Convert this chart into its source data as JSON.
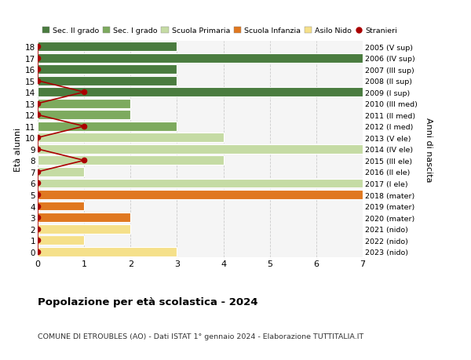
{
  "ages": [
    18,
    17,
    16,
    15,
    14,
    13,
    12,
    11,
    10,
    9,
    8,
    7,
    6,
    5,
    4,
    3,
    2,
    1,
    0
  ],
  "years": [
    "2005 (V sup)",
    "2006 (IV sup)",
    "2007 (III sup)",
    "2008 (II sup)",
    "2009 (I sup)",
    "2010 (III med)",
    "2011 (II med)",
    "2012 (I med)",
    "2013 (V ele)",
    "2014 (IV ele)",
    "2015 (III ele)",
    "2016 (II ele)",
    "2017 (I ele)",
    "2018 (mater)",
    "2019 (mater)",
    "2020 (mater)",
    "2021 (nido)",
    "2022 (nido)",
    "2023 (nido)"
  ],
  "bar_values": [
    3,
    7,
    3,
    3,
    7,
    2,
    2,
    3,
    4,
    7,
    4,
    1,
    7,
    7,
    1,
    2,
    2,
    1,
    3
  ],
  "bar_colors": [
    "#4a7c3f",
    "#4a7c3f",
    "#4a7c3f",
    "#4a7c3f",
    "#4a7c3f",
    "#7daa5e",
    "#7daa5e",
    "#7daa5e",
    "#c5dba4",
    "#c5dba4",
    "#c5dba4",
    "#c5dba4",
    "#c5dba4",
    "#e07820",
    "#e07820",
    "#e07820",
    "#f5e08a",
    "#f5e08a",
    "#f5e08a"
  ],
  "stranieri_dots": {
    "18": 0,
    "17": 0,
    "16": 0,
    "15": 0,
    "14": 1,
    "13": 0,
    "12": 0,
    "11": 1,
    "10": 0,
    "9": 0,
    "8": 1,
    "7": 0,
    "6": 0,
    "5": 0,
    "4": 0,
    "3": 0,
    "2": 0,
    "1": 0,
    "0": 0
  },
  "legend_labels": [
    "Sec. II grado",
    "Sec. I grado",
    "Scuola Primaria",
    "Scuola Infanzia",
    "Asilo Nido",
    "Stranieri"
  ],
  "legend_colors": [
    "#4a7c3f",
    "#7daa5e",
    "#c5dba4",
    "#e07820",
    "#f5e08a",
    "#aa0000"
  ],
  "title": "Popolazione per età scolastica - 2024",
  "subtitle": "COMUNE DI ETROUBLES (AO) - Dati ISTAT 1° gennaio 2024 - Elaborazione TUTTITALIA.IT",
  "ylabel_left": "Età alunni",
  "ylabel_right": "Anni di nascita",
  "xlim": [
    0,
    7
  ],
  "xticks": [
    0,
    1,
    2,
    3,
    4,
    5,
    6,
    7
  ],
  "stranieri_color": "#aa0000",
  "grid_color": "#cccccc",
  "bg_color": "#f5f5f5"
}
